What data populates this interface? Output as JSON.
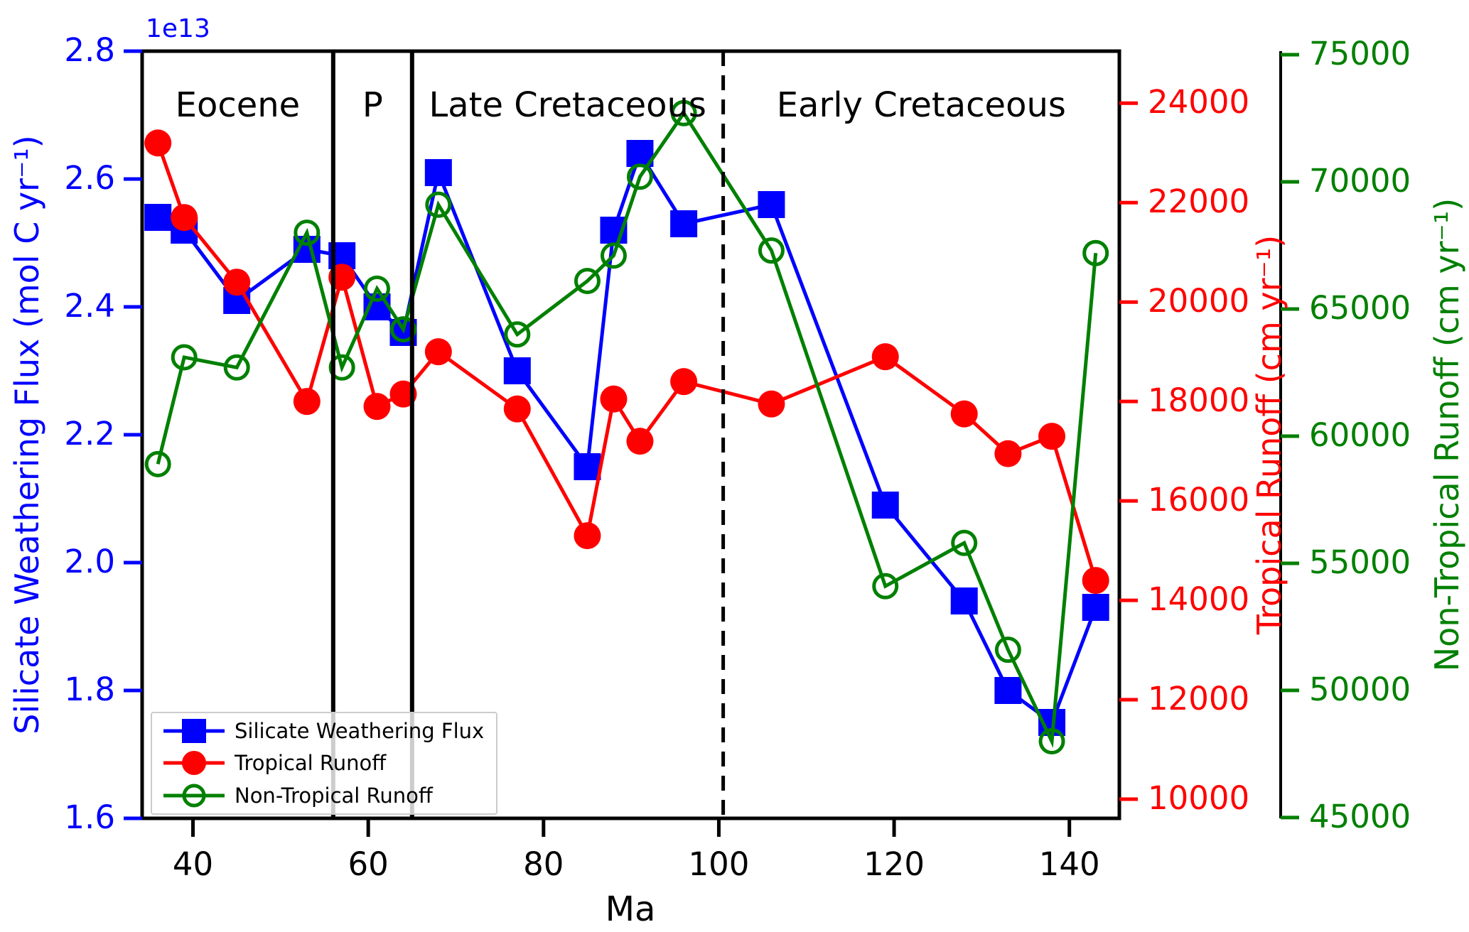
{
  "figure": {
    "background": "#ffffff"
  },
  "title_area": {},
  "axes": {
    "x": {
      "label": "Ma"
    },
    "left": {
      "label": "Silicate Weathering Flux (mol C yr⁻¹)",
      "offset_text": "1e13",
      "color": "#0000ff"
    },
    "right_red": {
      "label": "Tropical Runoff (cm yr⁻¹)",
      "color": "#ff0000"
    },
    "right_green": {
      "label": "Non-Tropical Runoff (cm yr⁻¹)",
      "color": "#008000"
    }
  },
  "legend": {
    "position": "lower left",
    "items": [
      {
        "label": "Silicate Weathering Flux",
        "color": "#0000ff",
        "marker": "square"
      },
      {
        "label": "Tropical Runoff",
        "color": "#ff0000",
        "marker": "circle"
      },
      {
        "label": "Non-Tropical Runoff",
        "color": "#008000",
        "marker": "open-circle"
      }
    ]
  },
  "chart_data": {
    "type": "line",
    "xlabel": "Ma",
    "xlim": [
      34.2,
      145.7
    ],
    "x_ticks": [
      40,
      60,
      80,
      100,
      120,
      140
    ],
    "x": [
      36,
      39,
      45,
      53,
      57,
      61,
      64,
      68,
      77,
      85,
      88,
      91,
      96,
      106,
      119,
      128,
      133,
      138,
      143
    ],
    "axes_config": {
      "left": {
        "lim": [
          1.6,
          2.8
        ],
        "ticks": [
          1.6,
          1.8,
          2.0,
          2.2,
          2.4,
          2.6,
          2.8
        ],
        "tick_decimals": 1,
        "color": "#0000ff",
        "offset_text": "1e13"
      },
      "red": {
        "lim": [
          9614,
          25047
        ],
        "ticks": [
          10000,
          12000,
          14000,
          16000,
          18000,
          20000,
          22000,
          24000
        ],
        "tick_decimals": 0,
        "color": "#ff0000"
      },
      "green": {
        "lim": [
          44970,
          75139
        ],
        "ticks": [
          45000,
          50000,
          55000,
          60000,
          65000,
          70000,
          75000
        ],
        "tick_decimals": 0,
        "color": "#008000"
      }
    },
    "series": [
      {
        "name": "Silicate Weathering Flux",
        "axis": "left",
        "color": "#0000ff",
        "marker": "square",
        "units": "1e13 mol C yr⁻¹",
        "values": [
          2.54,
          2.52,
          2.41,
          2.49,
          2.48,
          2.4,
          2.36,
          2.61,
          2.3,
          2.15,
          2.52,
          2.64,
          2.53,
          2.56,
          2.09,
          1.94,
          1.8,
          1.75,
          1.93
        ]
      },
      {
        "name": "Tropical Runoff",
        "axis": "red",
        "color": "#ff0000",
        "marker": "circle",
        "units": "cm yr⁻¹",
        "values": [
          23200,
          21700,
          20400,
          18000,
          20500,
          17900,
          18150,
          19000,
          17850,
          15300,
          18050,
          17200,
          18400,
          17950,
          18900,
          17750,
          16950,
          17300,
          14400
        ]
      },
      {
        "name": "Non-Tropical Runoff",
        "axis": "green",
        "color": "#008000",
        "marker": "open-circle",
        "units": "cm yr⁻¹",
        "values": [
          58900,
          63100,
          62700,
          68000,
          62700,
          65800,
          64200,
          69100,
          64000,
          66100,
          67100,
          70200,
          72700,
          67300,
          54100,
          55800,
          51600,
          48000,
          67200
        ]
      }
    ],
    "boundaries": [
      {
        "x": 56,
        "style": "solid"
      },
      {
        "x": 65,
        "style": "solid"
      },
      {
        "x": 100.5,
        "style": "dashed"
      }
    ],
    "period_labels": [
      {
        "label": "Eocene",
        "from": 34.2,
        "to": 56
      },
      {
        "label": "P",
        "from": 56,
        "to": 65
      },
      {
        "label": "Late Cretaceous",
        "from": 65,
        "to": 100.5
      },
      {
        "label": "Early Cretaceous",
        "from": 100.5,
        "to": 145.7
      }
    ],
    "grid": false,
    "legend_position": "lower left"
  }
}
